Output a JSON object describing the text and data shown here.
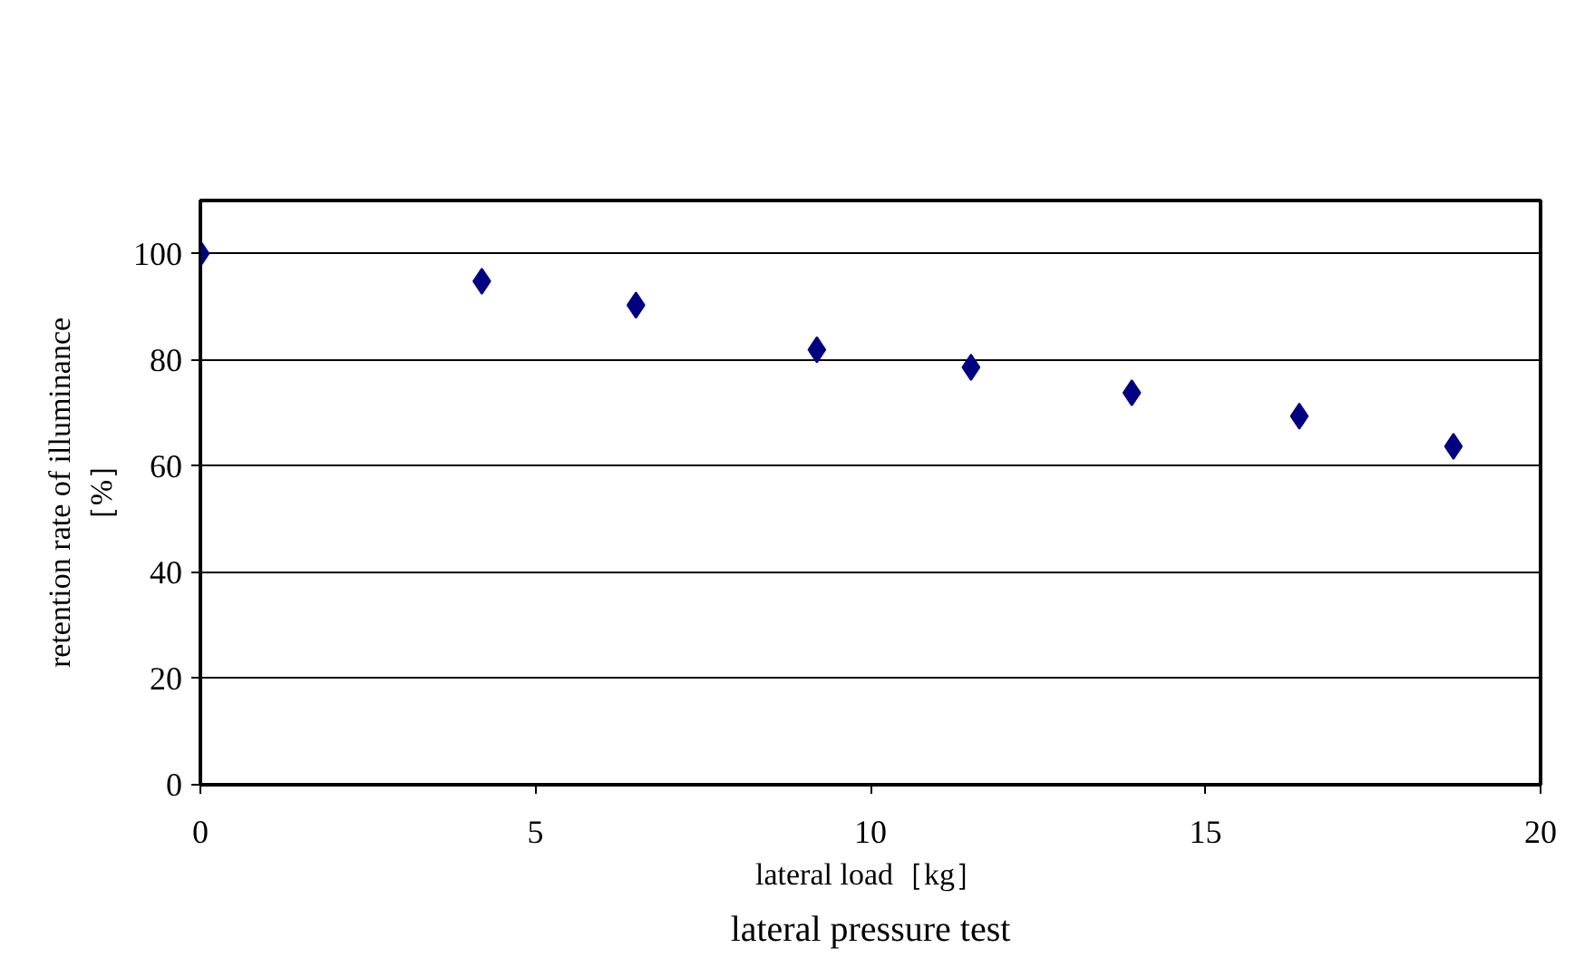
{
  "chart_data": {
    "type": "scatter",
    "title": "lateral pressure test",
    "xlabel": "lateral load［kg］",
    "ylabel": "retention rate of illuminance［%］",
    "x": [
      0,
      4.2,
      6.5,
      9.2,
      11.5,
      13.9,
      16.4,
      18.7
    ],
    "series": [
      {
        "color": "#000080",
        "values": [
          100,
          94.8,
          90.3,
          81.9,
          78.6,
          73.8,
          69.4,
          63.7
        ]
      }
    ],
    "xlim": [
      0,
      20
    ],
    "xticks": [
      0,
      5,
      10,
      15,
      20
    ],
    "ylim": [
      0,
      110
    ],
    "yticks": [
      0,
      20,
      40,
      60,
      80,
      100
    ],
    "grid": "y",
    "marker": "diamond"
  }
}
